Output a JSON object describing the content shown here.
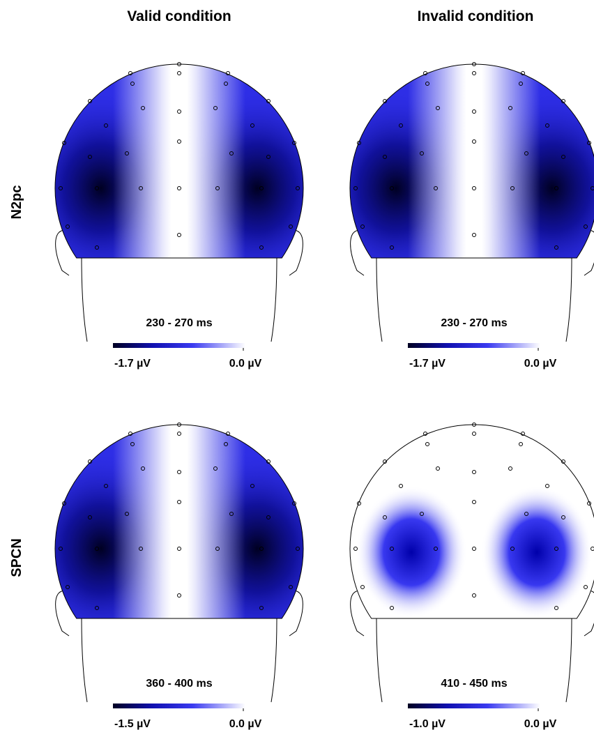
{
  "column_titles": [
    "Valid condition",
    "Invalid condition"
  ],
  "row_labels": [
    "N2pc",
    "SPCN"
  ],
  "panels": [
    {
      "time_window": "230 - 270 ms",
      "colorbar_min": "-1.7 µV",
      "colorbar_max": "0.0 µV"
    },
    {
      "time_window": "230 - 270 ms",
      "colorbar_min": "-1.7 µV",
      "colorbar_max": "0.0 µV"
    },
    {
      "time_window": "360 - 400 ms",
      "colorbar_min": "-1.5 µV",
      "colorbar_max": "0.0 µV"
    },
    {
      "time_window": "410 - 450 ms",
      "colorbar_min": "-1.0 µV",
      "colorbar_max": "0.0 µV"
    }
  ]
}
